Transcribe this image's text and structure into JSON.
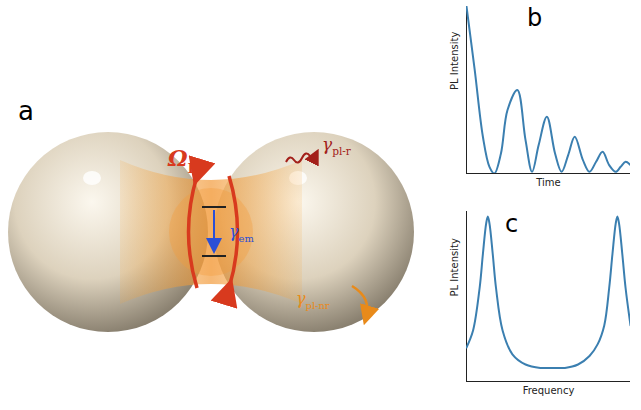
{
  "diagram": {
    "title": "a",
    "labels": {
      "coupling": {
        "symbol": "Ω",
        "subscript": "R"
      },
      "emitter": {
        "symbol": "γ",
        "subscript": "em"
      },
      "radiative": {
        "symbol": "γ",
        "subscript": "pl-r"
      },
      "nonradiative": {
        "symbol": "γ",
        "subscript": "pl-nr"
      }
    }
  },
  "chart_data": [
    {
      "type": "line",
      "title": "b",
      "x_label": "Time",
      "y_label": "PL Intensity",
      "color": "#3b7fb0",
      "tick_labels": false,
      "xlim": [
        0,
        1
      ],
      "ylim": [
        0,
        1
      ],
      "x": [
        0,
        0.05,
        0.1,
        0.14,
        0.17,
        0.21,
        0.25,
        0.31,
        0.36,
        0.4,
        0.44,
        0.49,
        0.54,
        0.58,
        0.62,
        0.66,
        0.71,
        0.75,
        0.79,
        0.83,
        0.87,
        0.91,
        0.94,
        0.97,
        1.0
      ],
      "values": [
        1.0,
        0.62,
        0.22,
        0.04,
        0.0,
        0.12,
        0.38,
        0.5,
        0.2,
        0.01,
        0.17,
        0.34,
        0.12,
        0.01,
        0.11,
        0.22,
        0.08,
        0.01,
        0.07,
        0.13,
        0.05,
        0.01,
        0.04,
        0.07,
        0.05
      ]
    },
    {
      "type": "line",
      "title": "c",
      "x_label": "Frequency",
      "y_label": "PL Intensity",
      "color": "#3b7fb0",
      "tick_labels": false,
      "xlim": [
        0,
        1
      ],
      "ylim": [
        0,
        1
      ],
      "x": [
        0,
        0.04,
        0.08,
        0.1,
        0.12,
        0.13,
        0.14,
        0.16,
        0.18,
        0.22,
        0.28,
        0.36,
        0.45,
        0.52,
        0.6,
        0.68,
        0.75,
        0.8,
        0.84,
        0.87,
        0.89,
        0.91,
        0.92,
        0.93,
        0.95,
        0.97,
        1.0
      ],
      "values": [
        0.2,
        0.3,
        0.55,
        0.75,
        0.93,
        0.97,
        0.93,
        0.75,
        0.55,
        0.3,
        0.16,
        0.1,
        0.08,
        0.08,
        0.08,
        0.1,
        0.15,
        0.22,
        0.33,
        0.55,
        0.75,
        0.93,
        0.97,
        0.93,
        0.75,
        0.55,
        0.33
      ]
    }
  ]
}
